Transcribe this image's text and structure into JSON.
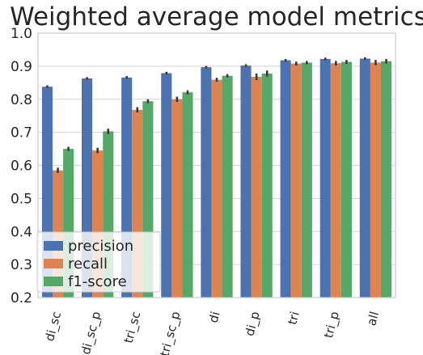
{
  "colors": {
    "precision": "#4c72b0",
    "recall": "#dd8452",
    "f1": "#55a868",
    "errorbar": "#3a3a3a",
    "grid": "#d4d4d4",
    "axes_edge": "#cccccc"
  },
  "chart_data": {
    "type": "bar",
    "title": "Weighted average model metrics",
    "xlabel": "",
    "ylabel": "",
    "ylim": [
      0.2,
      1.0
    ],
    "yticks": [
      "0.2",
      "0.3",
      "0.4",
      "0.5",
      "0.6",
      "0.7",
      "0.8",
      "0.9",
      "1.0"
    ],
    "grid": true,
    "legend_position": "bottom-left",
    "categories": [
      "di_sc",
      "di_sc_p",
      "tri_sc",
      "tri_sc_p",
      "di",
      "di_p",
      "tri",
      "tri_p",
      "all"
    ],
    "series": [
      {
        "name": "precision",
        "values": [
          0.838,
          0.863,
          0.866,
          0.879,
          0.897,
          0.902,
          0.918,
          0.922,
          0.923
        ],
        "err": [
          0.004,
          0.004,
          0.004,
          0.004,
          0.004,
          0.004,
          0.004,
          0.004,
          0.004
        ]
      },
      {
        "name": "recall",
        "values": [
          0.585,
          0.645,
          0.768,
          0.8,
          0.859,
          0.868,
          0.908,
          0.909,
          0.911
        ],
        "err": [
          0.008,
          0.008,
          0.008,
          0.008,
          0.006,
          0.01,
          0.006,
          0.007,
          0.008
        ]
      },
      {
        "name": "f1-score",
        "values": [
          0.65,
          0.703,
          0.794,
          0.821,
          0.871,
          0.878,
          0.911,
          0.913,
          0.915
        ],
        "err": [
          0.006,
          0.008,
          0.006,
          0.006,
          0.005,
          0.009,
          0.005,
          0.006,
          0.007
        ]
      }
    ]
  }
}
